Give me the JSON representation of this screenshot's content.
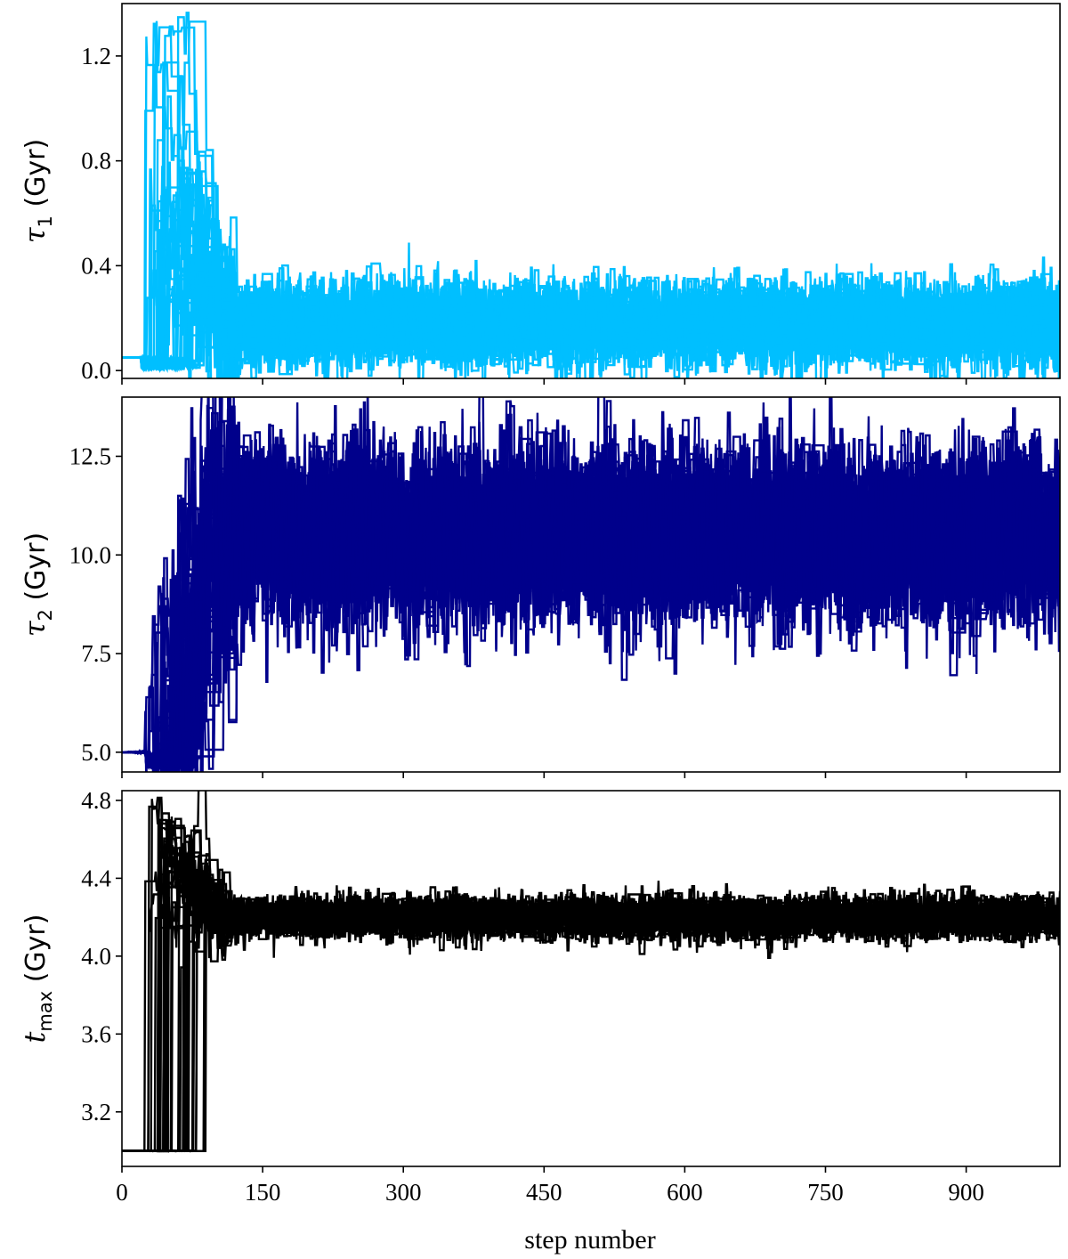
{
  "chart_data": [
    {
      "type": "line",
      "panel": "tau1",
      "ylabel": {
        "symbol": "τ",
        "sub": "1",
        "unit": " (Gyr)"
      },
      "color": "#00bfff",
      "xlim": [
        0,
        1000
      ],
      "ylim": [
        -0.03,
        1.4
      ],
      "yticks": [
        0.0,
        0.4,
        0.8,
        1.2
      ],
      "ytick_labels": [
        "0.0",
        "0.4",
        "0.8",
        "1.2"
      ],
      "walkers": {
        "count": 40,
        "start": 0.05,
        "burn_in_end": 120,
        "burn_in_peak": 1.37,
        "peak_step": 42,
        "stationary_low": 0.05,
        "stationary_high": 0.32,
        "stationary_median": 0.18,
        "max_excursion": 0.39,
        "min_excursion": 0.0
      }
    },
    {
      "type": "line",
      "panel": "tau2",
      "ylabel": {
        "symbol": "τ",
        "sub": "2",
        "unit": " (Gyr)"
      },
      "color": "#00008b",
      "xlim": [
        0,
        1000
      ],
      "ylim": [
        4.5,
        14.0
      ],
      "yticks": [
        5.0,
        7.5,
        10.0,
        12.5
      ],
      "ytick_labels": [
        "5.0",
        "7.5",
        "10.0",
        "12.5"
      ],
      "walkers": {
        "count": 40,
        "start": 5.0,
        "burn_in_end": 120,
        "burn_in_min": 4.15,
        "stationary_low": 8.7,
        "stationary_high": 12.5,
        "stationary_median": 10.5,
        "max_excursion": 13.8,
        "min_excursion": 8.2
      }
    },
    {
      "type": "line",
      "panel": "tmax",
      "ylabel": {
        "symbol": "t",
        "sub": "max",
        "unit": " (Gyr)"
      },
      "color": "#000000",
      "xlim": [
        0,
        1000
      ],
      "ylim": [
        2.92,
        4.85
      ],
      "yticks": [
        3.2,
        3.6,
        4.0,
        4.4,
        4.8
      ],
      "ytick_labels": [
        "3.2",
        "3.6",
        "4.0",
        "4.4",
        "4.8"
      ],
      "walkers": {
        "count": 40,
        "start": 3.0,
        "burn_in_end": 110,
        "burn_in_peak": 4.79,
        "peak_step": 42,
        "stationary_low": 4.12,
        "stationary_high": 4.3,
        "stationary_median": 4.2,
        "max_excursion": 4.38,
        "min_excursion": 4.05
      }
    }
  ],
  "xaxis": {
    "label": "step number",
    "xlim": [
      0,
      1000
    ],
    "ticks": [
      0,
      150,
      300,
      450,
      600,
      750,
      900
    ],
    "tick_labels": [
      "0",
      "150",
      "300",
      "450",
      "600",
      "750",
      "900"
    ]
  }
}
